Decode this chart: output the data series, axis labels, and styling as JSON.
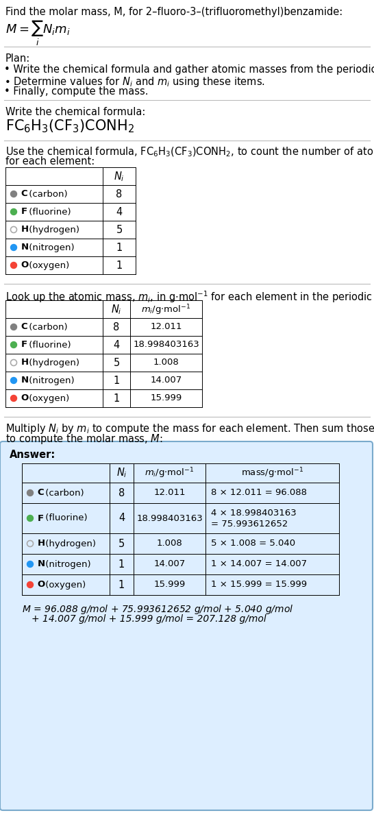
{
  "title_line": "Find the molar mass, M, for 2–fluoro-3–(trifluoromethyl)benzamide:",
  "elements": [
    "C (carbon)",
    "F (fluorine)",
    "H (hydrogen)",
    "N (nitrogen)",
    "O (oxygen)"
  ],
  "element_symbols": [
    "C",
    "F",
    "H",
    "N",
    "O"
  ],
  "dot_colors": [
    "#808080",
    "#4CAF50",
    "#aaaaaa",
    "#2196F3",
    "#F44336"
  ],
  "dot_filled": [
    true,
    true,
    false,
    true,
    true
  ],
  "Ni": [
    8,
    4,
    5,
    1,
    1
  ],
  "mi": [
    "12.011",
    "18.998403163",
    "1.008",
    "14.007",
    "15.999"
  ],
  "mass_calcs_line1": [
    "8 × 12.011 = 96.088",
    "4 × 18.998403163",
    "5 × 1.008 = 5.040",
    "1 × 14.007 = 14.007",
    "1 × 15.999 = 15.999"
  ],
  "mass_calcs_line2": [
    "",
    "= 75.993612652",
    "",
    "",
    ""
  ],
  "final_eq_line1": "M = 96.088 g/mol + 75.993612652 g/mol + 5.040 g/mol",
  "final_eq_line2": "    + 14.007 g/mol + 15.999 g/mol = 207.128 g/mol",
  "answer_bg": "#ddeeff",
  "answer_border": "#7aaacc",
  "bg_color": "#ffffff"
}
